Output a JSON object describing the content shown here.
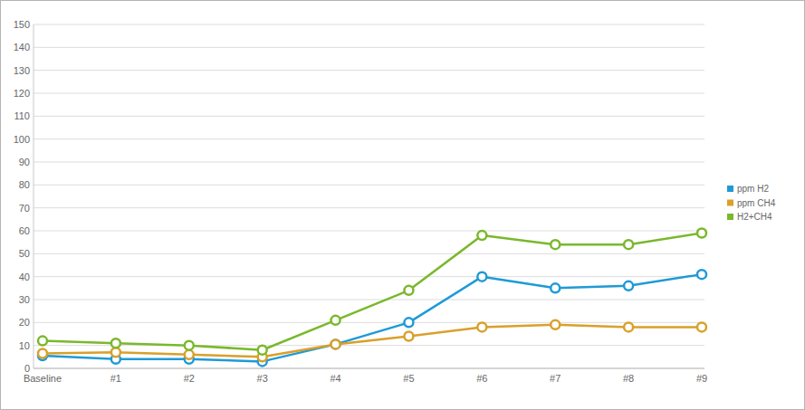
{
  "chart_data": {
    "type": "line",
    "categories": [
      "Baseline",
      "#1",
      "#2",
      "#3",
      "#4",
      "#5",
      "#6",
      "#7",
      "#8",
      "#9"
    ],
    "series": [
      {
        "name": "ppm H2",
        "color": "#1f9ad6",
        "marker": "circle",
        "values": [
          5.5,
          4,
          4,
          3,
          10.5,
          20,
          40,
          35,
          36,
          41
        ]
      },
      {
        "name": "ppm CH4",
        "color": "#d9a02a",
        "marker": "circle",
        "values": [
          6.5,
          7,
          6,
          5,
          10.5,
          14,
          18,
          19,
          18,
          18
        ]
      },
      {
        "name": "H2+CH4",
        "color": "#7ab82c",
        "marker": "circle",
        "values": [
          12,
          11,
          10,
          8,
          21,
          34,
          58,
          54,
          54,
          59
        ]
      }
    ],
    "ylim": [
      0,
      150
    ],
    "yticks": [
      0,
      10,
      20,
      30,
      40,
      50,
      60,
      70,
      80,
      90,
      100,
      110,
      120,
      130,
      140,
      150
    ],
    "grid": true,
    "legend": "right"
  }
}
